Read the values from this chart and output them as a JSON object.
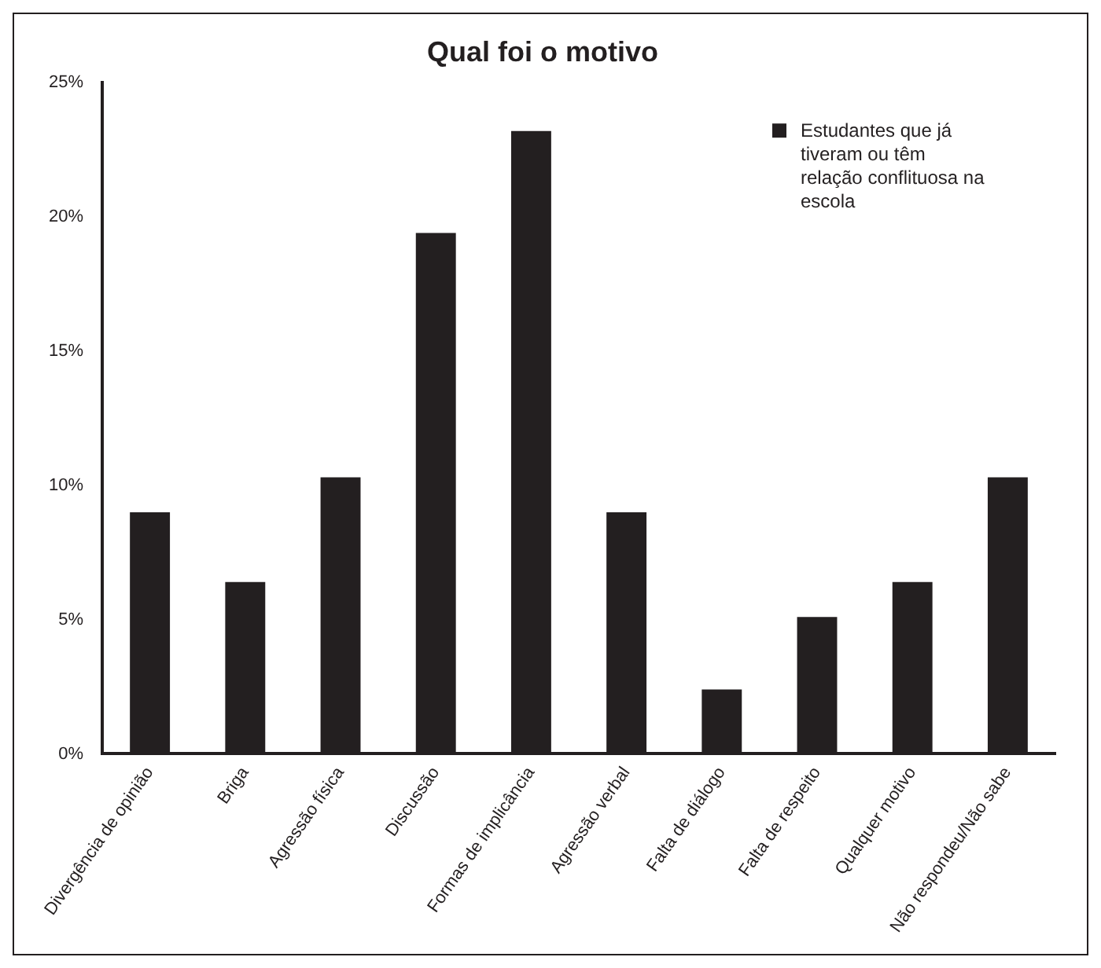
{
  "chart_data": {
    "type": "bar",
    "title": "Qual foi o motivo",
    "categories": [
      "Divergência de opinião",
      "Briga",
      "Agressão física",
      "Discussão",
      "Formas de implicância",
      "Agressão verbal",
      "Falta de diálogo",
      "Falta de respeito",
      "Qualquer motivo",
      "Não respondeu/Não sabe"
    ],
    "series": [
      {
        "name": "Estudantes que já tiveram ou têm relação conflituosa na escola",
        "color": "#231f20",
        "values": [
          9.0,
          6.4,
          10.3,
          19.4,
          23.2,
          9.0,
          2.4,
          5.1,
          6.4,
          10.3
        ]
      }
    ],
    "ylim": [
      0,
      25
    ],
    "yticks": [
      {
        "value": 0,
        "label": "0%"
      },
      {
        "value": 5,
        "label": "5%"
      },
      {
        "value": 10,
        "label": "10%"
      },
      {
        "value": 15,
        "label": "15%"
      },
      {
        "value": 20,
        "label": "20%"
      },
      {
        "value": 25,
        "label": "25%"
      }
    ],
    "grid": false,
    "legend": "top right"
  }
}
